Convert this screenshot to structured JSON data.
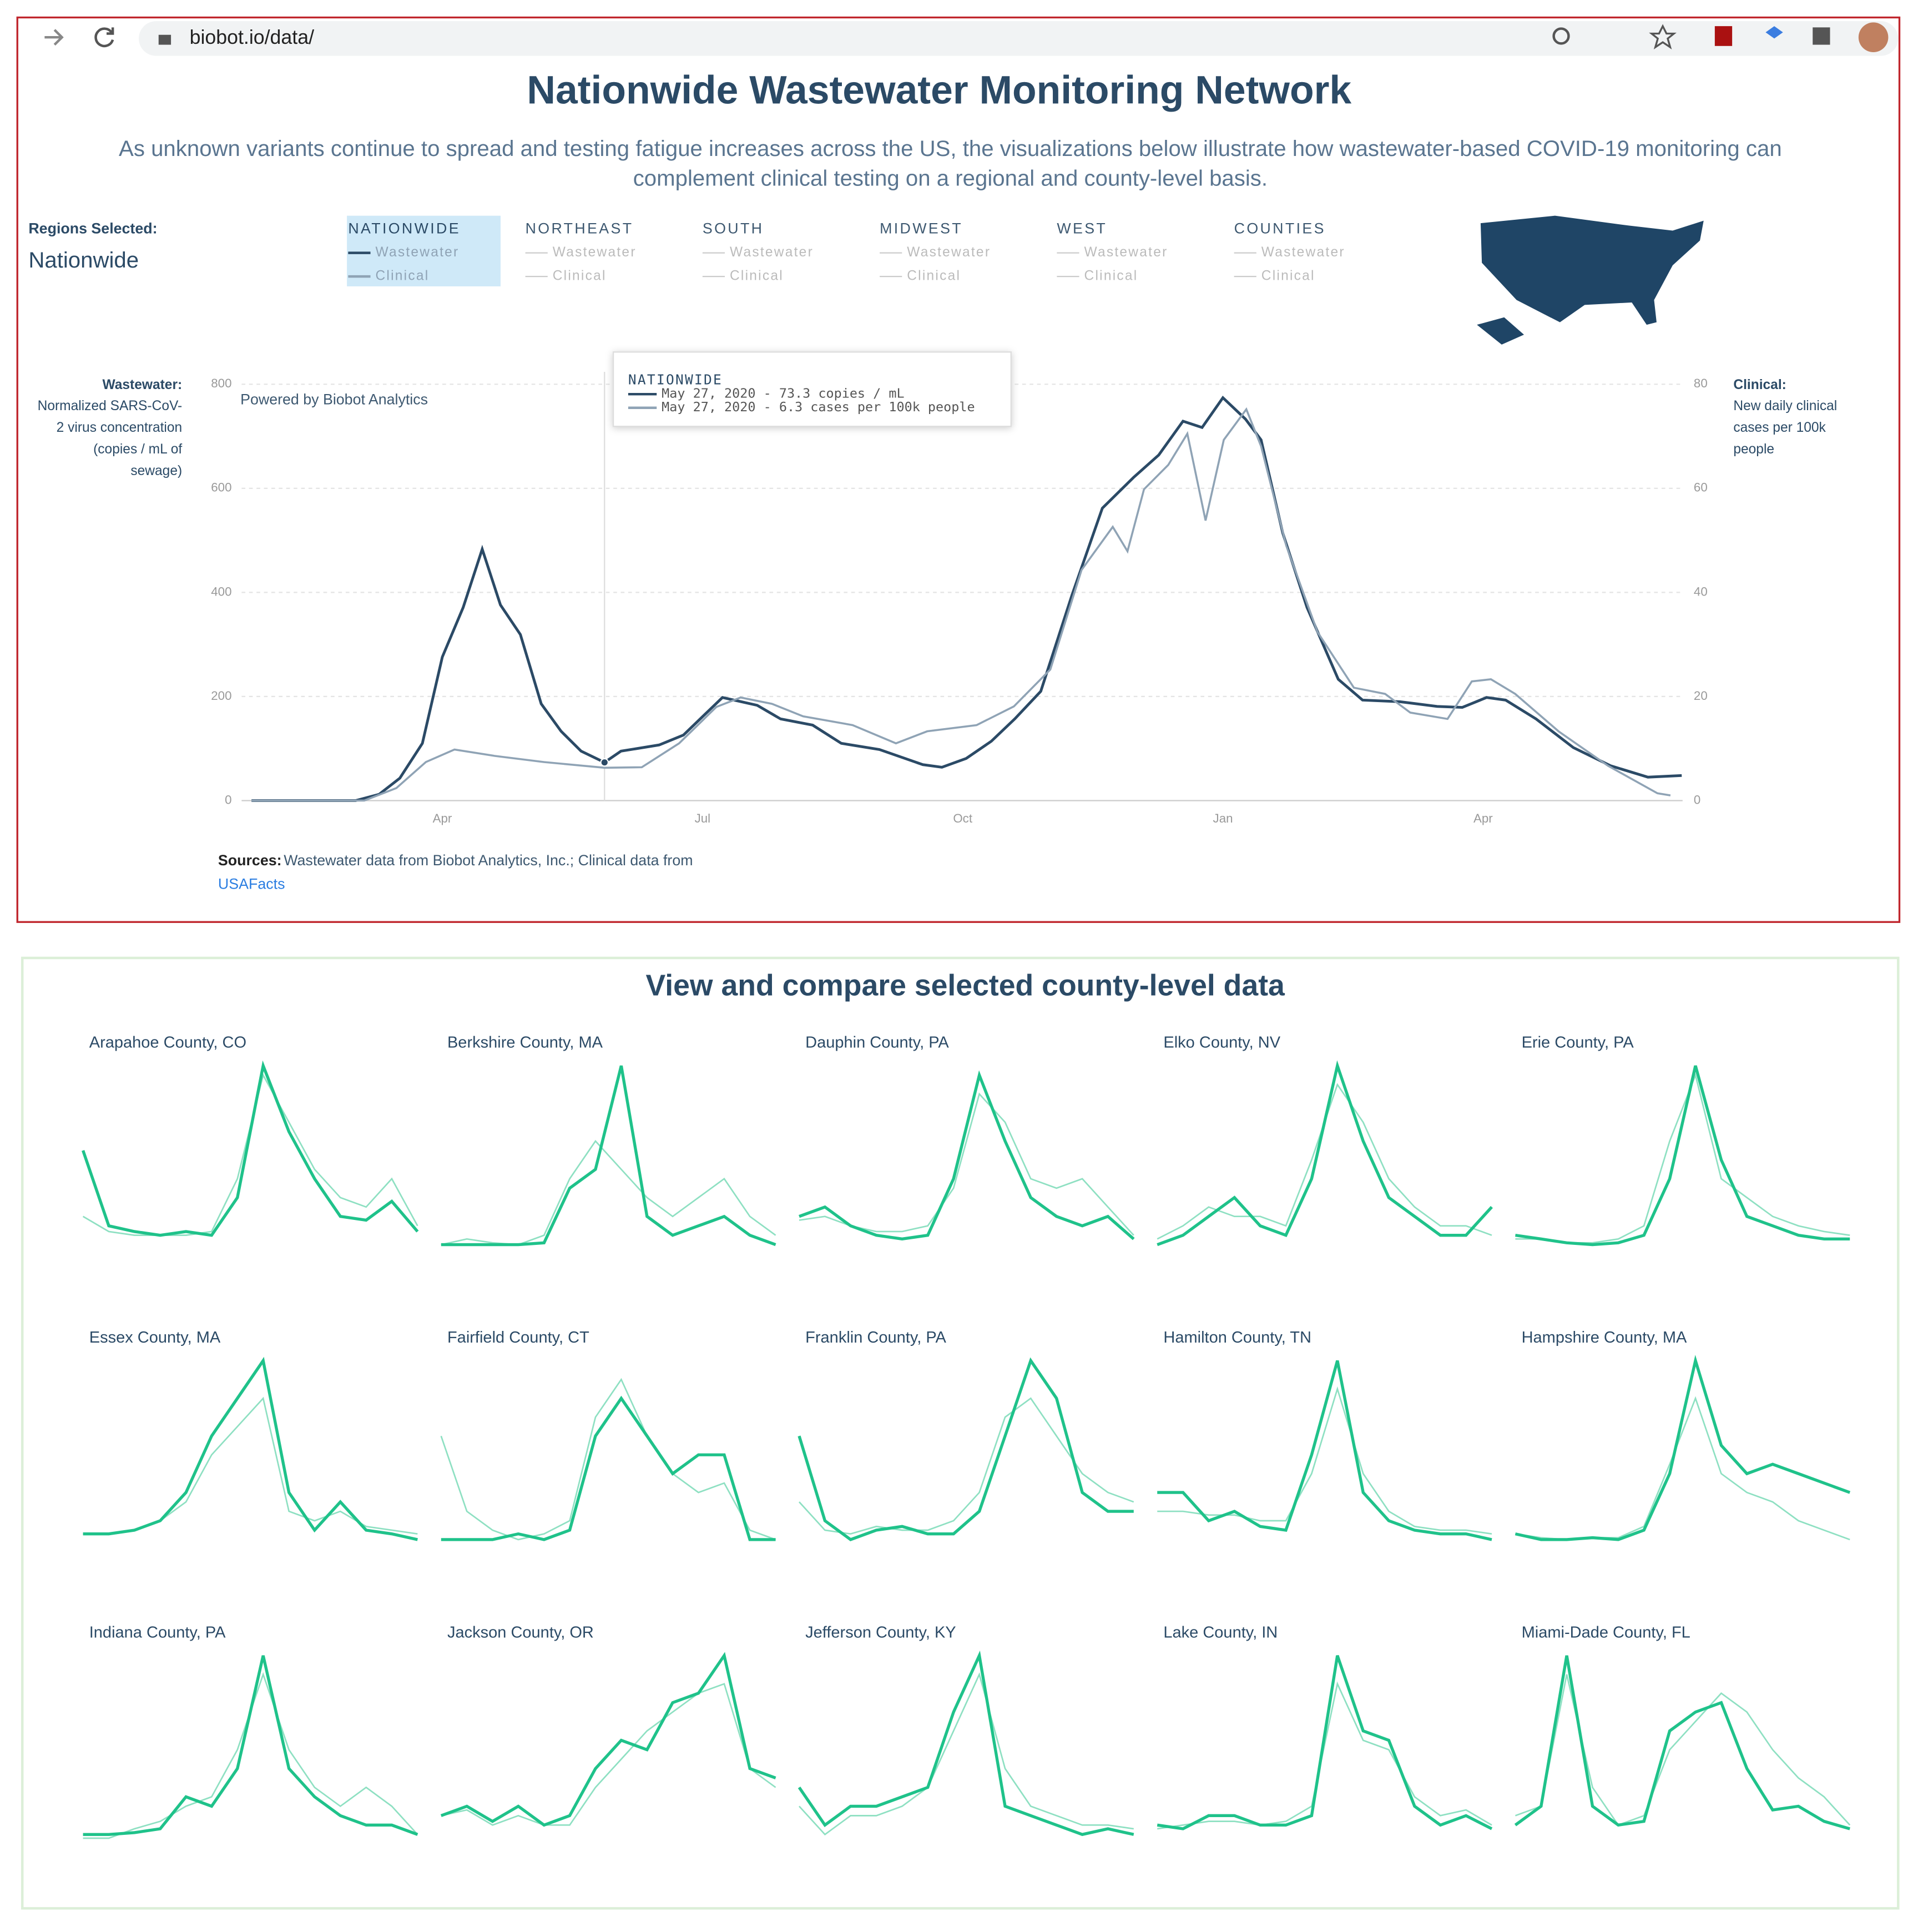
{
  "browser": {
    "url": "biobot.io/data/"
  },
  "title": "Nationwide Wastewater Monitoring Network",
  "subtitle": [
    "As unknown variants continue to spread and testing fatigue increases across the US, the visualizations below illustrate how wastewater-based COVID-19 monitoring can",
    "complement clinical testing on a regional and county-level basis."
  ],
  "regions_selected": {
    "label": "Regions Selected:",
    "value": "Nationwide"
  },
  "regions": [
    {
      "name": "NATIONWIDE",
      "items": [
        "Wastewater",
        "Clinical"
      ]
    },
    {
      "name": "NORTHEAST",
      "items": [
        "Wastewater",
        "Clinical"
      ]
    },
    {
      "name": "SOUTH",
      "items": [
        "Wastewater",
        "Clinical"
      ]
    },
    {
      "name": "MIDWEST",
      "items": [
        "Wastewater",
        "Clinical"
      ]
    },
    {
      "name": "WEST",
      "items": [
        "Wastewater",
        "Clinical"
      ]
    },
    {
      "name": "COUNTIES",
      "items": [
        "Wastewater",
        "Clinical"
      ]
    }
  ],
  "powered_by": "Powered by Biobot Analytics",
  "sources": {
    "label": "Sources:",
    "text": "Wastewater data from Biobot Analytics, Inc.; Clinical data from",
    "link": "USAFacts"
  },
  "county_section": {
    "title": "View and compare selected county-level data"
  },
  "chart_data": [
    {
      "type": "line",
      "y_label_title": "Wastewater:",
      "y_label": [
        "Normalized SARS-CoV-",
        "2 virus concentration",
        "(copies / mL of",
        "sewage)"
      ],
      "y2_label_title": "Clinical:",
      "y2_label": [
        "New daily clinical",
        "cases per 100k",
        "people"
      ],
      "xlim": [
        0.8,
        17.3
      ],
      "xticks": [
        {
          "value": 3,
          "label": "Apr"
        },
        {
          "value": 6,
          "label": "Jul"
        },
        {
          "value": 9,
          "label": "Oct"
        },
        {
          "value": 12,
          "label": "Jan"
        },
        {
          "value": 15,
          "label": "Apr"
        }
      ],
      "ylim": [
        0,
        800
      ],
      "yticks": [
        0,
        200,
        400,
        600,
        800
      ],
      "y2lim": [
        0,
        80
      ],
      "y2ticks": [
        0,
        20,
        40,
        60,
        80
      ],
      "grid": true,
      "series": [
        {
          "color": "#2b4a66",
          "x": [
            0.8,
            2.0,
            2.27,
            2.51,
            2.77,
            3.0,
            3.24,
            3.46,
            3.67,
            3.9,
            4.14,
            4.37,
            4.6,
            4.87,
            5.06,
            5.5,
            5.78,
            6.23,
            6.63,
            6.9,
            7.27,
            7.6,
            8.04,
            8.54,
            8.76,
            9.04,
            9.33,
            9.6,
            9.9,
            10.26,
            10.61,
            10.97,
            11.26,
            11.54,
            11.76,
            12.0,
            12.26,
            12.44,
            12.69,
            12.97,
            13.33,
            13.61,
            14.04,
            14.47,
            14.76,
            15.04,
            15.26,
            15.61,
            16.04,
            16.47,
            16.9,
            17.29
          ],
          "values": [
            0,
            0,
            12,
            43,
            110,
            276,
            371,
            483,
            376,
            319,
            186,
            133,
            95,
            73.3,
            95,
            107,
            126,
            198,
            183,
            157,
            145,
            110,
            98,
            69,
            64,
            81,
            114,
            157,
            210,
            395,
            562,
            621,
            664,
            729,
            717,
            774,
            733,
            693,
            514,
            371,
            233,
            193,
            190,
            181,
            179,
            198,
            193,
            157,
            102,
            67,
            45,
            48
          ]
        },
        {
          "color": "#8fa3b5",
          "axis": "y2",
          "x": [
            0.8,
            2.1,
            2.47,
            2.81,
            3.14,
            3.6,
            4.17,
            4.87,
            5.3,
            5.73,
            6.16,
            6.44,
            6.8,
            7.16,
            7.73,
            8.23,
            8.59,
            9.16,
            9.59,
            10.01,
            10.37,
            10.73,
            10.9,
            11.09,
            11.37,
            11.59,
            11.8,
            12.01,
            12.27,
            12.44,
            12.73,
            13.09,
            13.51,
            13.87,
            14.16,
            14.59,
            14.87,
            15.09,
            15.37,
            15.87,
            16.44,
            17.01,
            17.16
          ],
          "values": [
            0,
            0,
            2.4,
            7.4,
            9.8,
            8.6,
            7.4,
            6.3,
            6.4,
            11,
            18,
            19.8,
            18.6,
            16.2,
            14.5,
            11,
            13.3,
            14.5,
            18.1,
            25.2,
            44.3,
            52.6,
            47.9,
            59.8,
            64.5,
            70.5,
            53.8,
            69.3,
            75.2,
            68.1,
            49,
            32.4,
            21.7,
            20.5,
            16.9,
            15.7,
            22.9,
            23.3,
            20.5,
            13.3,
            6.7,
            1.4,
            1
          ]
        }
      ],
      "tooltip": {
        "x": 4.87,
        "title": "NATIONWIDE",
        "lines": [
          "May 27, 2020 - 73.3 copies / mL",
          "May 27, 2020 - 6.3 cases per 100k people"
        ]
      }
    },
    {
      "type": "line",
      "title": "Arapahoe County, CO",
      "ylim": [
        0,
        100
      ],
      "series": [
        {
          "color": "#1fc28a",
          "values": [
            55,
            15,
            12,
            10,
            12,
            10,
            30,
            100,
            65,
            40,
            20,
            18,
            28,
            12
          ]
        },
        {
          "color": "#8ee0c2",
          "values": [
            20,
            12,
            10,
            10,
            10,
            12,
            40,
            95,
            70,
            45,
            30,
            25,
            40,
            15
          ]
        }
      ]
    },
    {
      "type": "line",
      "title": "Berkshire County, MA",
      "ylim": [
        0,
        100
      ],
      "series": [
        {
          "color": "#1fc28a",
          "values": [
            5,
            5,
            5,
            5,
            6,
            35,
            45,
            100,
            20,
            10,
            15,
            20,
            10,
            5
          ]
        },
        {
          "color": "#8ee0c2",
          "values": [
            5,
            8,
            6,
            5,
            10,
            40,
            60,
            45,
            30,
            20,
            30,
            40,
            20,
            10
          ]
        }
      ]
    },
    {
      "type": "line",
      "title": "Dauphin County, PA",
      "ylim": [
        0,
        100
      ],
      "series": [
        {
          "color": "#1fc28a",
          "values": [
            20,
            25,
            15,
            10,
            8,
            10,
            40,
            95,
            60,
            30,
            20,
            15,
            20,
            8
          ]
        },
        {
          "color": "#8ee0c2",
          "values": [
            18,
            20,
            15,
            12,
            12,
            15,
            35,
            85,
            70,
            40,
            35,
            40,
            25,
            10
          ]
        }
      ]
    },
    {
      "type": "line",
      "title": "Elko County, NV",
      "ylim": [
        0,
        100
      ],
      "series": [
        {
          "color": "#1fc28a",
          "values": [
            5,
            10,
            20,
            30,
            15,
            10,
            40,
            100,
            60,
            30,
            20,
            10,
            10,
            25
          ]
        },
        {
          "color": "#8ee0c2",
          "values": [
            8,
            15,
            25,
            20,
            20,
            15,
            50,
            90,
            70,
            40,
            25,
            15,
            15,
            10
          ]
        }
      ]
    },
    {
      "type": "line",
      "title": "Erie County, PA",
      "ylim": [
        0,
        100
      ],
      "series": [
        {
          "color": "#1fc28a",
          "values": [
            10,
            8,
            6,
            5,
            6,
            10,
            40,
            100,
            50,
            20,
            15,
            10,
            8,
            8
          ]
        },
        {
          "color": "#8ee0c2",
          "values": [
            8,
            8,
            6,
            6,
            8,
            15,
            60,
            95,
            40,
            30,
            20,
            15,
            12,
            10
          ]
        }
      ]
    },
    {
      "type": "line",
      "title": "Essex County, MA",
      "ylim": [
        0,
        100
      ],
      "series": [
        {
          "color": "#1fc28a",
          "values": [
            8,
            8,
            10,
            15,
            30,
            60,
            80,
            100,
            30,
            10,
            25,
            10,
            8,
            5
          ]
        },
        {
          "color": "#8ee0c2",
          "values": [
            8,
            8,
            10,
            15,
            25,
            50,
            65,
            80,
            20,
            15,
            20,
            12,
            10,
            8
          ]
        }
      ]
    },
    {
      "type": "line",
      "title": "Fairfield County, CT",
      "ylim": [
        0,
        100
      ],
      "series": [
        {
          "color": "#1fc28a",
          "values": [
            5,
            5,
            5,
            8,
            5,
            10,
            60,
            80,
            60,
            40,
            50,
            50,
            5,
            5
          ]
        },
        {
          "color": "#8ee0c2",
          "values": [
            60,
            20,
            10,
            5,
            8,
            15,
            70,
            90,
            60,
            40,
            30,
            35,
            10,
            5
          ]
        }
      ]
    },
    {
      "type": "line",
      "title": "Franklin County, PA",
      "ylim": [
        0,
        100
      ],
      "series": [
        {
          "color": "#1fc28a",
          "values": [
            60,
            15,
            5,
            10,
            12,
            8,
            8,
            20,
            60,
            100,
            80,
            30,
            20,
            20
          ]
        },
        {
          "color": "#8ee0c2",
          "values": [
            25,
            10,
            8,
            12,
            10,
            10,
            15,
            30,
            70,
            80,
            60,
            40,
            30,
            25
          ]
        }
      ]
    },
    {
      "type": "line",
      "title": "Hamilton County, TN",
      "ylim": [
        0,
        100
      ],
      "series": [
        {
          "color": "#1fc28a",
          "values": [
            30,
            30,
            15,
            20,
            12,
            10,
            50,
            100,
            30,
            15,
            10,
            8,
            8,
            5
          ]
        },
        {
          "color": "#8ee0c2",
          "values": [
            20,
            20,
            18,
            18,
            15,
            15,
            40,
            85,
            40,
            20,
            12,
            10,
            10,
            8
          ]
        }
      ]
    },
    {
      "type": "line",
      "title": "Hampshire County, MA",
      "ylim": [
        0,
        100
      ],
      "series": [
        {
          "color": "#1fc28a",
          "values": [
            8,
            5,
            5,
            6,
            5,
            10,
            40,
            100,
            55,
            40,
            45,
            40,
            35,
            30
          ]
        },
        {
          "color": "#8ee0c2",
          "values": [
            8,
            6,
            5,
            6,
            6,
            12,
            45,
            80,
            40,
            30,
            25,
            15,
            10,
            5
          ]
        }
      ]
    },
    {
      "type": "line",
      "title": "Indiana County, PA",
      "ylim": [
        0,
        100
      ],
      "series": [
        {
          "color": "#1fc28a",
          "values": [
            5,
            5,
            6,
            8,
            25,
            20,
            40,
            100,
            40,
            25,
            15,
            10,
            10,
            5
          ]
        },
        {
          "color": "#8ee0c2",
          "values": [
            3,
            3,
            8,
            12,
            20,
            25,
            50,
            90,
            50,
            30,
            20,
            30,
            20,
            5
          ]
        }
      ]
    },
    {
      "type": "line",
      "title": "Jackson County, OR",
      "ylim": [
        0,
        100
      ],
      "series": [
        {
          "color": "#1fc28a",
          "values": [
            15,
            20,
            12,
            20,
            10,
            15,
            40,
            55,
            50,
            75,
            80,
            100,
            40,
            35
          ]
        },
        {
          "color": "#8ee0c2",
          "values": [
            15,
            18,
            10,
            15,
            10,
            10,
            30,
            45,
            60,
            70,
            80,
            85,
            40,
            30
          ]
        }
      ]
    },
    {
      "type": "line",
      "title": "Jefferson County, KY",
      "ylim": [
        0,
        100
      ],
      "series": [
        {
          "color": "#1fc28a",
          "values": [
            30,
            10,
            20,
            20,
            25,
            30,
            70,
            100,
            20,
            15,
            10,
            5,
            8,
            5
          ]
        },
        {
          "color": "#8ee0c2",
          "values": [
            20,
            5,
            15,
            15,
            20,
            30,
            60,
            90,
            40,
            20,
            15,
            10,
            10,
            8
          ]
        }
      ]
    },
    {
      "type": "line",
      "title": "Lake County, IN",
      "ylim": [
        0,
        100
      ],
      "series": [
        {
          "color": "#1fc28a",
          "values": [
            10,
            8,
            15,
            15,
            10,
            10,
            15,
            100,
            60,
            55,
            20,
            10,
            15,
            8
          ]
        },
        {
          "color": "#8ee0c2",
          "values": [
            8,
            10,
            12,
            12,
            10,
            12,
            20,
            85,
            55,
            50,
            25,
            15,
            18,
            10
          ]
        }
      ]
    },
    {
      "type": "line",
      "title": "Miami-Dade County, FL",
      "ylim": [
        0,
        100
      ],
      "series": [
        {
          "color": "#1fc28a",
          "values": [
            10,
            20,
            100,
            20,
            10,
            12,
            60,
            70,
            75,
            40,
            18,
            20,
            12,
            8
          ]
        },
        {
          "color": "#8ee0c2",
          "values": [
            15,
            20,
            90,
            30,
            10,
            15,
            50,
            65,
            80,
            70,
            50,
            35,
            25,
            10
          ]
        }
      ]
    }
  ]
}
